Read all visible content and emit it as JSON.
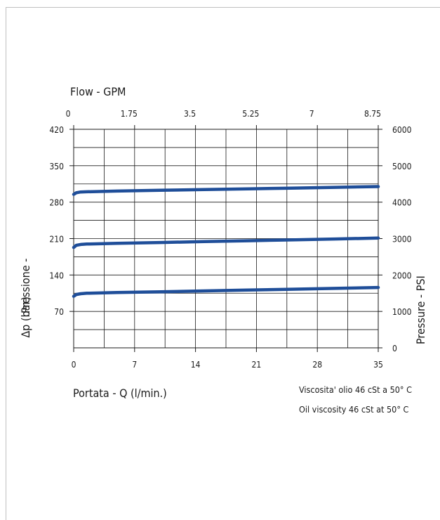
{
  "chart_data": {
    "type": "line",
    "top_axis_label": "Flow - GPM",
    "top_ticks": [
      "0",
      "1.75",
      "3.5",
      "5.25",
      "7",
      "8.75"
    ],
    "xlabel": "Portata - Q (l/min.)",
    "x_ticks": [
      "0",
      "7",
      "14",
      "21",
      "28",
      "35"
    ],
    "xlim": [
      0,
      35
    ],
    "ylabel_left_1": "Pressione -",
    "ylabel_left_2": "Δp (bar)",
    "left_ticks": [
      "420",
      "350",
      "280",
      "210",
      "140",
      "70"
    ],
    "ylim": [
      0,
      420
    ],
    "ylabel_right": "Pressure - PSI",
    "right_ticks": [
      "6000",
      "5000",
      "4000",
      "3000",
      "2000",
      "1000",
      "0"
    ],
    "grid": true,
    "series_color": "#1f4e99",
    "series": [
      {
        "x": [
          0,
          0.3,
          0.8,
          1.5,
          5,
          10,
          15,
          20,
          25,
          30,
          35
        ],
        "y": [
          295,
          298,
          299.5,
          300,
          301.3,
          302.8,
          304.2,
          305.6,
          307,
          308.4,
          310
        ]
      },
      {
        "x": [
          0,
          0.3,
          0.8,
          1.5,
          5,
          10,
          15,
          20,
          25,
          30,
          35
        ],
        "y": [
          193,
          197,
          198.7,
          199.5,
          200.8,
          202.5,
          204.2,
          205.8,
          207.5,
          209.2,
          211
        ]
      },
      {
        "x": [
          0,
          0.3,
          0.8,
          1.5,
          5,
          10,
          15,
          20,
          25,
          30,
          35
        ],
        "y": [
          99,
          102.5,
          104,
          105,
          106.3,
          107.8,
          109.4,
          111,
          112.6,
          114.2,
          116
        ]
      }
    ]
  },
  "notes": {
    "line1": "Viscosita' olio 46 cSt a 50° C",
    "line2": "Oil viscosity 46 cSt at 50° C"
  }
}
